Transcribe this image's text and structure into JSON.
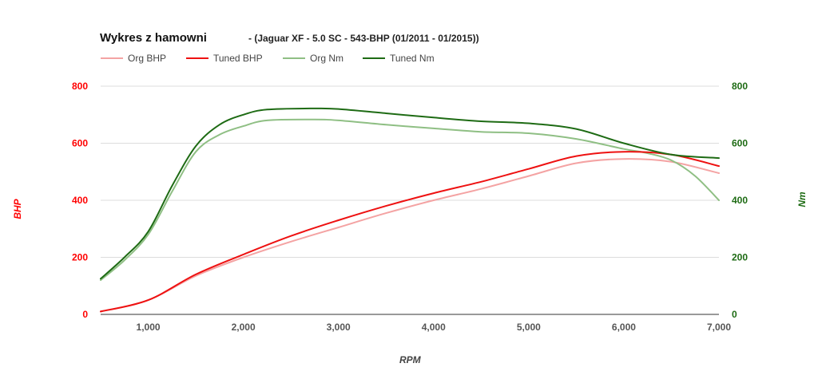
{
  "chart_data": {
    "type": "line",
    "title": "Wykres z hamowni",
    "subtitle": "- (Jaguar XF - 5.0 SC - 543-BHP (01/2011 - 01/2015))",
    "xlabel": "RPM",
    "ylabel_left": "BHP",
    "ylabel_right": "Nm",
    "xlim": [
      500,
      7000
    ],
    "ylim_left": [
      0,
      800
    ],
    "ylim_right": [
      0,
      800
    ],
    "x_ticks": [
      1000,
      2000,
      3000,
      4000,
      5000,
      6000,
      7000
    ],
    "x_tick_labels": [
      "1,000",
      "2,000",
      "3,000",
      "4,000",
      "5,000",
      "6,000",
      "7,000"
    ],
    "y_ticks": [
      0,
      200,
      400,
      600,
      800
    ],
    "y_tick_labels": [
      "0",
      "200",
      "400",
      "600",
      "800"
    ],
    "grid": true,
    "legend_position": "top-left",
    "series": [
      {
        "name": "Org BHP",
        "axis": "left",
        "color": "#f4a3a3",
        "width": 2,
        "x": [
          500,
          1000,
          1500,
          2000,
          2500,
          3000,
          3500,
          4000,
          4500,
          5000,
          5500,
          6000,
          6500,
          7000
        ],
        "values": [
          10,
          50,
          135,
          200,
          255,
          305,
          355,
          400,
          440,
          485,
          530,
          545,
          535,
          495
        ]
      },
      {
        "name": "Tuned BHP",
        "axis": "left",
        "color": "#ee1111",
        "width": 2,
        "x": [
          500,
          1000,
          1500,
          2000,
          2500,
          3000,
          3500,
          4000,
          4500,
          5000,
          5500,
          6000,
          6500,
          7000
        ],
        "values": [
          10,
          50,
          140,
          210,
          275,
          330,
          380,
          425,
          465,
          510,
          555,
          570,
          560,
          520
        ]
      },
      {
        "name": "Org Nm",
        "axis": "right",
        "color": "#8fbf84",
        "width": 2,
        "x": [
          500,
          750,
          1000,
          1250,
          1500,
          1750,
          2000,
          2250,
          2750,
          3000,
          3500,
          4000,
          4500,
          5000,
          5500,
          6000,
          6250,
          6500,
          6750,
          7000
        ],
        "values": [
          120,
          190,
          280,
          430,
          570,
          630,
          660,
          680,
          683,
          680,
          665,
          652,
          640,
          635,
          615,
          580,
          565,
          540,
          485,
          400
        ]
      },
      {
        "name": "Tuned Nm",
        "axis": "right",
        "color": "#1e6b14",
        "width": 2,
        "x": [
          500,
          750,
          1000,
          1250,
          1500,
          1750,
          2000,
          2250,
          2750,
          3000,
          3500,
          4000,
          4500,
          5000,
          5500,
          6000,
          6500,
          7000
        ],
        "values": [
          125,
          200,
          290,
          450,
          590,
          665,
          700,
          718,
          722,
          720,
          705,
          690,
          677,
          670,
          650,
          600,
          560,
          548
        ]
      }
    ],
    "colors": {
      "left_axis": "#ff0000",
      "right_axis": "#1e6b14",
      "x_axis": "#555555",
      "grid": "#dddddd"
    }
  }
}
